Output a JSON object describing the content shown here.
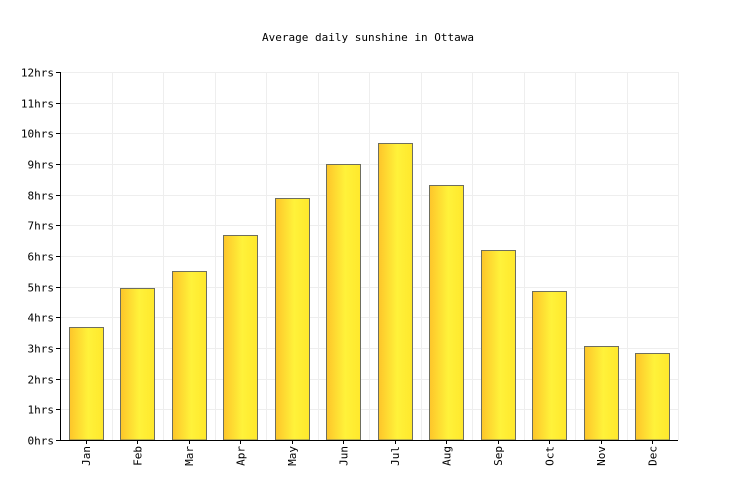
{
  "chart_data": {
    "type": "bar",
    "title": "Average daily sunshine in Ottawa",
    "xlabel": "",
    "ylabel": "",
    "categories": [
      "Jan",
      "Feb",
      "Mar",
      "Apr",
      "May",
      "Jun",
      "Jul",
      "Aug",
      "Sep",
      "Oct",
      "Nov",
      "Dec"
    ],
    "values": [
      3.7,
      4.95,
      5.5,
      6.7,
      7.9,
      9.0,
      9.7,
      8.3,
      6.2,
      4.85,
      3.05,
      2.85
    ],
    "ylim": [
      0,
      12
    ],
    "yticks": [
      0,
      1,
      2,
      3,
      4,
      5,
      6,
      7,
      8,
      9,
      10,
      11,
      12
    ],
    "ytick_labels": [
      "0hrs",
      "1hrs",
      "2hrs",
      "3hrs",
      "4hrs",
      "5hrs",
      "6hrs",
      "7hrs",
      "8hrs",
      "9hrs",
      "10hrs",
      "11hrs",
      "12hrs"
    ],
    "grid": true,
    "legend": "none",
    "colors": {
      "bar_fill_light": "#fff23a",
      "bar_fill_mid": "#ffe82c",
      "bar_fill_dark": "#fdc52a",
      "bar_stroke": "#6e6e5e",
      "grid": "#eeeeee",
      "axis": "#000000"
    }
  }
}
